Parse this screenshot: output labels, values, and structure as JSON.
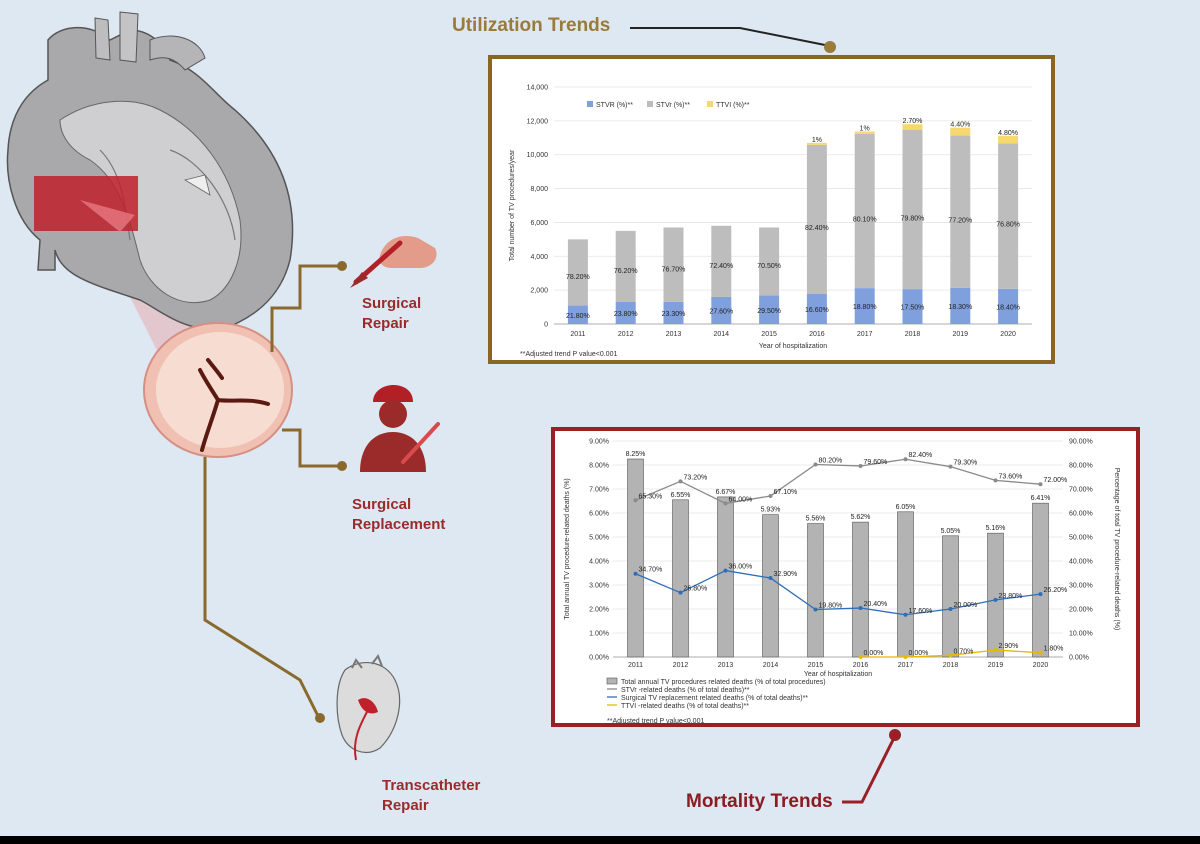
{
  "titles": {
    "utilization": "Utilization Trends",
    "mortality": "Mortality Trends"
  },
  "labels": {
    "surgical_repair": [
      "Surgical",
      "Repair"
    ],
    "surgical_replacement": [
      "Surgical",
      "Replacement"
    ],
    "transcatheter_repair": [
      "Transcatheter",
      "Repair"
    ]
  },
  "colors": {
    "utilization_frame": "#8a6623",
    "mortality_frame": "#9a1f26",
    "stvr": "#7f9fdd",
    "sttv": "#bdbdbd",
    "ttvi": "#f6d86e",
    "line_stvr": "#8a8a8a",
    "line_surg": "#2e6fb8",
    "line_ttvi": "#e8b800"
  },
  "chart_data": [
    {
      "type": "bar",
      "stacked": true,
      "categories": [
        "2011",
        "2012",
        "2013",
        "2014",
        "2015",
        "2016",
        "2017",
        "2018",
        "2019",
        "2020"
      ],
      "xlabel": "Year of hospitalization",
      "ylabel": "Total number of TV procedures/year",
      "ylim": [
        0,
        14000
      ],
      "yticks": [
        "0",
        "2,000",
        "4,000",
        "6,000",
        "8,000",
        "10,000",
        "12,000",
        "14,000"
      ],
      "legend_position": "top-left",
      "footnote": "**Adjusted trend P value<0.001",
      "series": [
        {
          "name": "STVR (%)**",
          "values": [
            1090,
            1300,
            1310,
            1600,
            1680,
            1770,
            2120,
            2060,
            2130,
            2080
          ],
          "labels": [
            "21.80%",
            "23.80%",
            "23.30%",
            "27.60%",
            "29.50%",
            "16.60%",
            "18.80%",
            "17.50%",
            "18.30%",
            "18.40%"
          ]
        },
        {
          "name": "STVr (%)**",
          "values": [
            3910,
            4200,
            4390,
            4200,
            4020,
            8810,
            9110,
            9420,
            9000,
            8580
          ],
          "labels": [
            "78.20%",
            "76.20%",
            "76.70%",
            "72.40%",
            "70.50%",
            "82.40%",
            "80.10%",
            "79.80%",
            "77.20%",
            "76.80%"
          ]
        },
        {
          "name": "TTVI (%)**",
          "values": [
            0,
            0,
            0,
            0,
            0,
            120,
            140,
            320,
            470,
            460
          ],
          "labels": [
            "",
            "",
            "",
            "",
            "",
            "1%",
            "1%",
            "2.70%",
            "4.40%",
            "4.80%"
          ]
        }
      ]
    },
    {
      "type": "bar",
      "categories": [
        "2011",
        "2012",
        "2013",
        "2014",
        "2015",
        "2016",
        "2017",
        "2018",
        "2019",
        "2020"
      ],
      "xlabel": "Year of hospitalization",
      "ylabel": "Total annual TV procedure-related deaths (%)",
      "ylabel_right": "Percentage of total TV procedure-related deaths (%)",
      "ylim": [
        0,
        9
      ],
      "ylim_right": [
        0,
        90
      ],
      "yticks": [
        "0.00%",
        "1.00%",
        "2.00%",
        "3.00%",
        "4.00%",
        "5.00%",
        "6.00%",
        "7.00%",
        "8.00%",
        "9.00%"
      ],
      "yticks_right": [
        "0.00%",
        "10.00%",
        "20.00%",
        "30.00%",
        "40.00%",
        "50.00%",
        "60.00%",
        "70.00%",
        "80.00%",
        "90.00%"
      ],
      "bars": {
        "name": "Total annual TV procedures related deaths (% of total procedures)",
        "values": [
          8.25,
          6.55,
          6.67,
          5.93,
          5.56,
          5.62,
          6.05,
          5.05,
          5.16,
          6.41
        ],
        "labels": [
          "8.25%",
          "6.55%",
          "6.67%",
          "5.93%",
          "5.56%",
          "5.62%",
          "6.05%",
          "5.05%",
          "5.16%",
          "6.41%"
        ]
      },
      "lines": [
        {
          "name": "STVr -related deaths (% of total deaths)**",
          "values": [
            65.3,
            73.2,
            64.0,
            67.1,
            80.2,
            79.6,
            82.4,
            79.3,
            73.6,
            72.0
          ],
          "labels": [
            "65.30%",
            "73.20%",
            "64.00%",
            "67.10%",
            "80.20%",
            "79.60%",
            "82.40%",
            "79.30%",
            "73.60%",
            "72.00%"
          ]
        },
        {
          "name": "Surgical TV replacement related deaths (% of total deaths)**",
          "values": [
            34.7,
            26.8,
            36.0,
            32.9,
            19.8,
            20.4,
            17.6,
            20.0,
            23.8,
            26.2
          ],
          "labels": [
            "34.70%",
            "26.80%",
            "36.00%",
            "32.90%",
            "19.80%",
            "20.40%",
            "17.60%",
            "20.00%",
            "23.80%",
            "26.20%"
          ]
        },
        {
          "name": "TTVI -related deaths (% of total deaths)**",
          "values": [
            null,
            null,
            null,
            null,
            null,
            0,
            0,
            0.7,
            2.9,
            1.8
          ],
          "labels": [
            "",
            "",
            "",
            "",
            "",
            "0.00%",
            "0.00%",
            "0.70%",
            "2.90%",
            "1.80%"
          ]
        }
      ],
      "footnote": "**Adjusted trend P value<0.001"
    }
  ]
}
